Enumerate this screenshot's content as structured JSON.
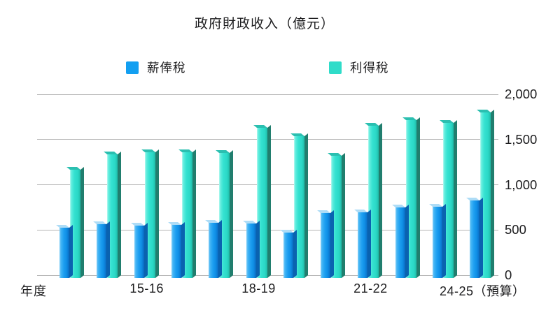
{
  "chart_data": {
    "type": "bar",
    "title": "政府財政收入（億元）",
    "x_axis_title": "年度",
    "legend_position": "top",
    "grid": true,
    "ylim": [
      0,
      2000
    ],
    "y_ticks": [
      {
        "value": 2000,
        "label": "2,000"
      },
      {
        "value": 1500,
        "label": "1,500"
      },
      {
        "value": 1000,
        "label": "1,000"
      },
      {
        "value": 500,
        "label": "500"
      },
      {
        "value": 0,
        "label": "0"
      }
    ],
    "group_count": 12,
    "x_tick_labels": [
      {
        "group_index": 2,
        "label": "15-16"
      },
      {
        "group_index": 5,
        "label": "18-19"
      },
      {
        "group_index": 8,
        "label": "21-22"
      },
      {
        "group_index": 11,
        "label": "24-25（預算）"
      }
    ],
    "series": [
      {
        "name": "薪俸稅",
        "color": "#129ff1",
        "values": [
          560,
          595,
          580,
          590,
          610,
          600,
          505,
          720,
          730,
          780,
          790,
          860
        ]
      },
      {
        "name": "利得稅",
        "color": "#2fdcc9",
        "values": [
          1200,
          1370,
          1390,
          1390,
          1385,
          1660,
          1565,
          1350,
          1685,
          1750,
          1715,
          1835
        ]
      }
    ],
    "colors": {
      "grid": "#b5b5b5",
      "text": "#1c1c1e",
      "background": "#ffffff"
    }
  }
}
